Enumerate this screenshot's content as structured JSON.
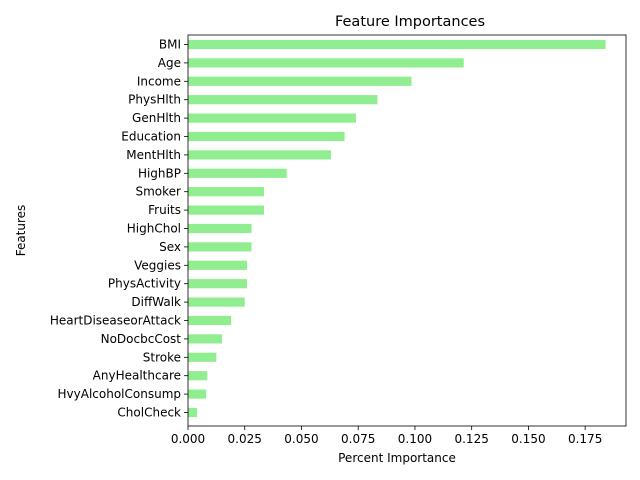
{
  "chart_data": {
    "type": "bar",
    "orientation": "horizontal",
    "title": "Feature Importances",
    "xlabel": "Percent Importance",
    "ylabel": "Features",
    "xlim": [
      0,
      0.193
    ],
    "xticks": [
      0.0,
      0.025,
      0.05,
      0.075,
      0.1,
      0.125,
      0.15,
      0.175
    ],
    "xtick_labels": [
      "0.000",
      "0.025",
      "0.050",
      "0.075",
      "0.100",
      "0.125",
      "0.150",
      "0.175"
    ],
    "grid": false,
    "bar_color": "#90ee90",
    "categories": [
      "BMI",
      "Age",
      "Income",
      "PhysHlth",
      "GenHlth",
      "Education",
      "MentHlth",
      "HighBP",
      "Smoker",
      "Fruits",
      "HighChol",
      "Sex",
      "Veggies",
      "PhysActivity",
      "DiffWalk",
      "HeartDiseaseorAttack",
      "NoDocbcCost",
      "Stroke",
      "AnyHealthcare",
      "HvyAlcoholConsump",
      "CholCheck"
    ],
    "values": [
      0.184,
      0.1215,
      0.0985,
      0.0835,
      0.074,
      0.069,
      0.063,
      0.0435,
      0.0335,
      0.0335,
      0.028,
      0.028,
      0.026,
      0.026,
      0.025,
      0.019,
      0.015,
      0.0125,
      0.0085,
      0.008,
      0.004
    ]
  }
}
